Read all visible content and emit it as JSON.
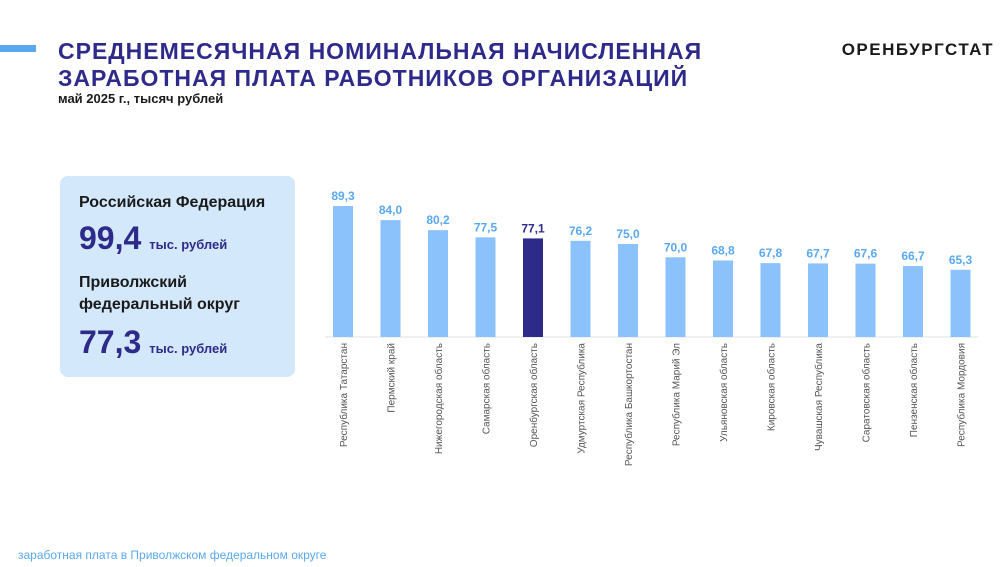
{
  "header": {
    "title_line1": "СРЕДНЕМЕСЯЧНАЯ НОМИНАЛЬНАЯ НАЧИСЛЕННАЯ",
    "title_line2": "ЗАРАБОТНАЯ ПЛАТА РАБОТНИКОВ ОРГАНИЗАЦИЙ",
    "subtitle": "май 2025 г., тысяч рублей",
    "brand": "ОРЕНБУРГСТАТ"
  },
  "info": {
    "rf_label": "Российская Федерация",
    "rf_value": "99,4",
    "rf_unit": "тыс. рублей",
    "pfo_label_line1": "Приволжский",
    "pfo_label_line2": "федеральный округ",
    "pfo_value": "77,3",
    "pfo_unit": "тыс. рублей"
  },
  "footer": {
    "text": "заработная плата в Приволжском федеральном округе"
  },
  "colors": {
    "bar": "#8cc2fb",
    "highlight_bar": "#2e2a8a",
    "value_label": "#5aa9f0",
    "highlight_label": "#2e2a8a",
    "title": "#2e2a8a"
  },
  "chart_data": {
    "type": "bar",
    "categories": [
      "Республика Татарстан",
      "Пермский край",
      "Нижегородская область",
      "Самарская область",
      "Оренбургская область",
      "Удмуртская Республика",
      "Республика Башкортостан",
      "Республика  Марий Эл",
      "Ульяновская область",
      "Кировская область",
      "Чувашская Республика",
      "Саратовская область",
      "Пензенская область",
      "Республика Мордовия"
    ],
    "values": [
      89.3,
      84.0,
      80.2,
      77.5,
      77.1,
      76.2,
      75.0,
      70.0,
      68.8,
      67.8,
      67.7,
      67.6,
      66.7,
      65.3
    ],
    "value_labels": [
      "89,3",
      "84,0",
      "80,2",
      "77,5",
      "77,1",
      "76,2",
      "75,0",
      "70,0",
      "68,8",
      "67,8",
      "67,7",
      "67,6",
      "66,7",
      "65,3"
    ],
    "highlight_category": "Оренбургская область",
    "ylim": [
      40,
      90
    ],
    "grid": false,
    "legend": "none",
    "title": "",
    "xlabel": "",
    "ylabel": ""
  }
}
